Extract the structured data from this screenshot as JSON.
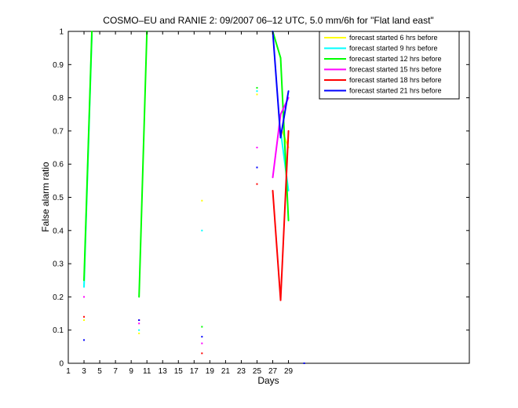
{
  "chart_data": {
    "type": "line",
    "title": "COSMO–EU and RANIE 2: 09/2007 06–12 UTC, 5.0 mm/6h for \"Flat land east\"",
    "xlabel": "Days",
    "ylabel": "False alarm ratio",
    "xlim": [
      1,
      52
    ],
    "ylim": [
      0,
      1
    ],
    "xticks": [
      1,
      3,
      5,
      7,
      9,
      11,
      13,
      15,
      17,
      19,
      21,
      23,
      25,
      27,
      29
    ],
    "yticks": [
      0,
      0.1,
      0.2,
      0.3,
      0.4,
      0.5,
      0.6,
      0.7,
      0.8,
      0.9,
      1
    ],
    "ytick_labels": [
      "0",
      "0.1",
      "0.2",
      "0.3",
      "0.4",
      "0.5",
      "0.6",
      "0.7",
      "0.8",
      "0.9",
      "1"
    ],
    "grid": false,
    "legend_position": "top-right",
    "series": [
      {
        "name": "forecast started 6 hrs before",
        "color": "#ffff00",
        "points": [
          [
            3,
            0.13
          ],
          [
            10,
            0.09
          ],
          [
            18,
            0.49
          ],
          [
            25,
            0.81
          ],
          [
            28.2,
            0.7
          ],
          [
            29,
            0.65
          ]
        ]
      },
      {
        "name": "forecast started 9 hrs before",
        "color": "#00ffff",
        "points": [
          [
            3,
            0.23
          ],
          [
            4,
            0.99
          ],
          [
            10,
            0.1
          ],
          [
            18,
            0.4
          ],
          [
            25,
            0.82
          ],
          [
            28,
            0.7
          ],
          [
            29,
            0.52
          ]
        ]
      },
      {
        "name": "forecast started 12 hrs before",
        "color": "#00ff00",
        "points": [
          [
            3,
            0.25
          ],
          [
            4,
            1.0
          ],
          [
            10,
            0.2
          ],
          [
            11,
            1.0
          ],
          [
            18,
            0.11
          ],
          [
            25,
            0.83
          ],
          [
            27,
            1.0
          ],
          [
            28,
            0.92
          ],
          [
            29,
            0.43
          ]
        ]
      },
      {
        "name": "forecast started 15 hrs before",
        "color": "#ff00ff",
        "points": [
          [
            3,
            0.2
          ],
          [
            10,
            0.12
          ],
          [
            18,
            0.06
          ],
          [
            25,
            0.65
          ],
          [
            27,
            0.56
          ],
          [
            28,
            0.75
          ],
          [
            29,
            0.8
          ]
        ]
      },
      {
        "name": "forecast started 18 hrs before",
        "color": "#ff0000",
        "points": [
          [
            3,
            0.14
          ],
          [
            10,
            0.13
          ],
          [
            18,
            0.03
          ],
          [
            25,
            0.54
          ],
          [
            27,
            0.52
          ],
          [
            28,
            0.19
          ],
          [
            29,
            0.7
          ]
        ]
      },
      {
        "name": "forecast started 21 hrs before",
        "color": "#0000ff",
        "points": [
          [
            3,
            0.07
          ],
          [
            10,
            0.13
          ],
          [
            18,
            0.08
          ],
          [
            25,
            0.59
          ],
          [
            27,
            1.0
          ],
          [
            28,
            0.68
          ],
          [
            29,
            0.82
          ],
          [
            31,
            0.0
          ]
        ]
      }
    ]
  }
}
